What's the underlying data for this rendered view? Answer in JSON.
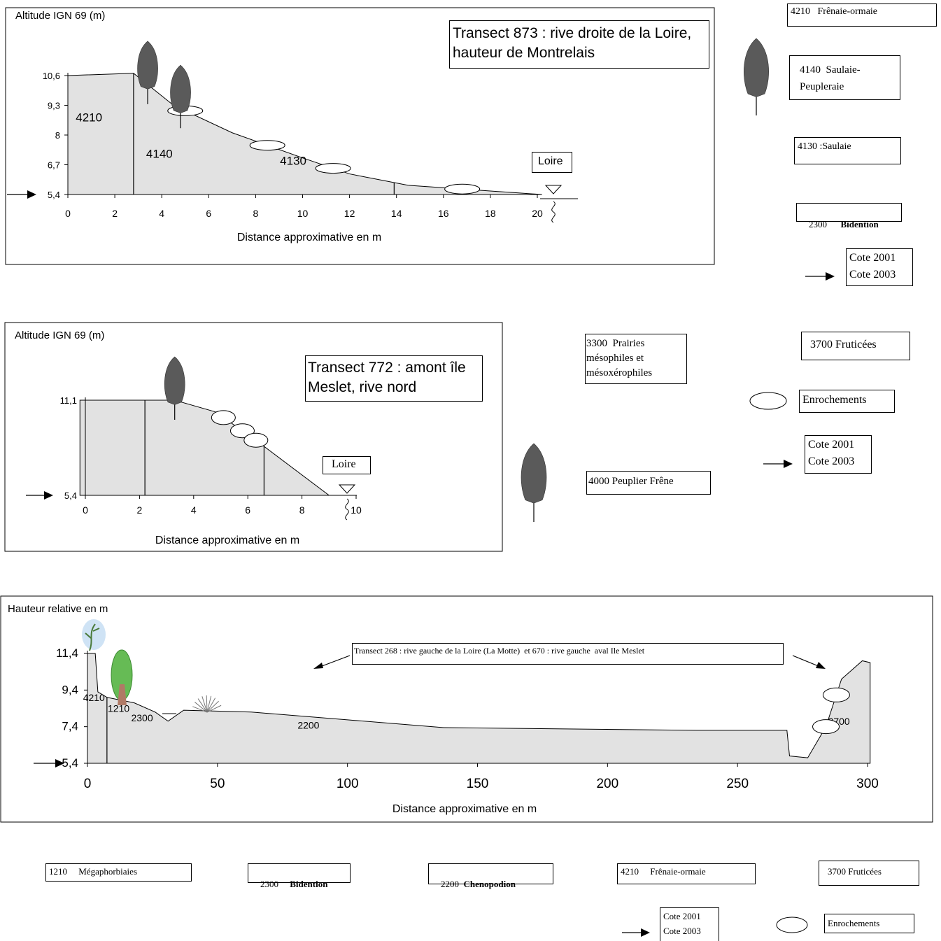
{
  "chart_data": [
    {
      "type": "area",
      "title": "Transect 873 : rive droite de la Loire,\nhauteur de Montrelais",
      "xlabel": "Distance approximative en m",
      "ylabel": "Altitude IGN 69 (m)",
      "xlim": [
        0,
        20
      ],
      "x_ticks": [
        "0",
        "2",
        "4",
        "6",
        "8",
        "10",
        "12",
        "14",
        "16",
        "18",
        "20"
      ],
      "y_ticks": [
        {
          "label": "10,6",
          "value": 10.6
        },
        {
          "label": "9,3",
          "value": 9.3
        },
        {
          "label": "8",
          "value": 8
        },
        {
          "label": "6,7",
          "value": 6.7
        },
        {
          "label": "5,4",
          "value": 5.4
        }
      ],
      "profile": {
        "x": [
          0,
          2.8,
          4.5,
          7,
          10,
          12,
          14.5,
          20.2
        ],
        "y": [
          10.6,
          10.7,
          9.3,
          8.1,
          7.0,
          6.3,
          5.8,
          5.4
        ]
      },
      "dividers": [
        2.8,
        13.9
      ],
      "zones": [
        {
          "label": "4210",
          "x": 0.9,
          "y": 8.6
        },
        {
          "label": "4140",
          "x": 3.9,
          "y": 7.0
        },
        {
          "label": "4130",
          "x": 9.6,
          "y": 6.7
        }
      ],
      "riprap_x": [
        5,
        8.5,
        11.3,
        16.8
      ],
      "trees_x": [
        3.4,
        4.8
      ],
      "river_label": "Loire",
      "water_level": 5.4
    },
    {
      "type": "area",
      "title": "Transect 772 : amont île\nMeslet, rive nord",
      "xlabel": "Distance approximative en m",
      "ylabel": "Altitude IGN 69 (m)",
      "xlim": [
        0,
        10
      ],
      "x_ticks": [
        "0",
        "2",
        "4",
        "6",
        "8",
        "10"
      ],
      "y_ticks": [
        {
          "label": "11,1",
          "value": 11.1
        },
        {
          "label": "5,4",
          "value": 5.4
        }
      ],
      "profile": {
        "x": [
          -0.2,
          3.3,
          4.8,
          6.3,
          9.0
        ],
        "y": [
          11.1,
          11.1,
          10.4,
          8.7,
          5.4
        ]
      },
      "dividers": [
        2.2,
        6.6
      ],
      "riprap_x": [
        5.1,
        5.8,
        6.3
      ],
      "trees_x": [
        3.3
      ],
      "river_label": "Loire",
      "water_level": 5.4
    },
    {
      "type": "area",
      "title": "Transect 268 : rive gauche de la Loire (La Motte)  et 670 : rive gauche  aval Ile Meslet",
      "xlabel": "Distance approximative en m",
      "ylabel": "Hauteur relative en m",
      "xlim": [
        0,
        300
      ],
      "x_ticks": [
        "0",
        "50",
        "100",
        "150",
        "200",
        "250",
        "300"
      ],
      "y_ticks": [
        {
          "label": "11,4",
          "value": 11.4
        },
        {
          "label": "9,4",
          "value": 9.4
        },
        {
          "label": "7,4",
          "value": 7.4
        },
        {
          "label": "5,4",
          "value": 5.4
        }
      ],
      "profile": {
        "x": [
          0,
          3,
          4,
          7.5,
          18,
          26,
          31,
          37,
          63,
          137,
          234,
          269,
          270,
          277,
          284,
          290,
          298,
          301
        ],
        "y": [
          11.4,
          11.4,
          9.3,
          9.0,
          8.7,
          8.2,
          7.7,
          8.3,
          8.2,
          7.35,
          7.2,
          7.2,
          5.8,
          5.7,
          7.4,
          10.0,
          11.0,
          10.9
        ]
      },
      "dividers": [
        7.5
      ],
      "zones": [
        {
          "label": "4210",
          "x": 2.5,
          "y": 8.8
        },
        {
          "label": "1210",
          "x": 12,
          "y": 8.2
        },
        {
          "label": "2300",
          "x": 21,
          "y": 7.7
        },
        {
          "label": "2200",
          "x": 85,
          "y": 7.3
        },
        {
          "label": "3700",
          "x": 289,
          "y": 7.5
        }
      ],
      "riprap_x": [
        288,
        284
      ],
      "water_level": 5.4
    }
  ],
  "legends": {
    "t873": {
      "l4210": "4210   Frênaie-ormaie",
      "l4140": "4140  Saulaie-\nPeupleraie",
      "l4130": "4130 :Saulaie",
      "l2300_code": "2300",
      "l2300_name": "Bidention",
      "cote": "Cote 2001\nCote 2003"
    },
    "t772": {
      "l3300": "3300  Prairies\nmésophiles et\nmésoxérophiles",
      "l3700": "3700 Fruticées",
      "enro": "Enrochements",
      "cote": "Cote 2001\nCote 2003",
      "l4000": "4000 Peuplier Frêne"
    },
    "t268": {
      "l1210": "1210     Mégaphorbiaies",
      "l2300_code": "2300",
      "l2300_name": "Bidention",
      "l2200_code": "2200",
      "l2200_name": "Chenopodion",
      "l4210": "4210     Frênaie-ormaie",
      "l3700": "3700 Fruticées",
      "cote": "Cote 2001\nCote 2003",
      "enro": "Enrochements"
    }
  },
  "colors": {
    "fill": "#e2e2e2",
    "tree": "#5a5a5a",
    "shrub_green": "#66bb55",
    "shrub_trunk": "#b07a66",
    "plant_blue": "#cfe3f5"
  }
}
